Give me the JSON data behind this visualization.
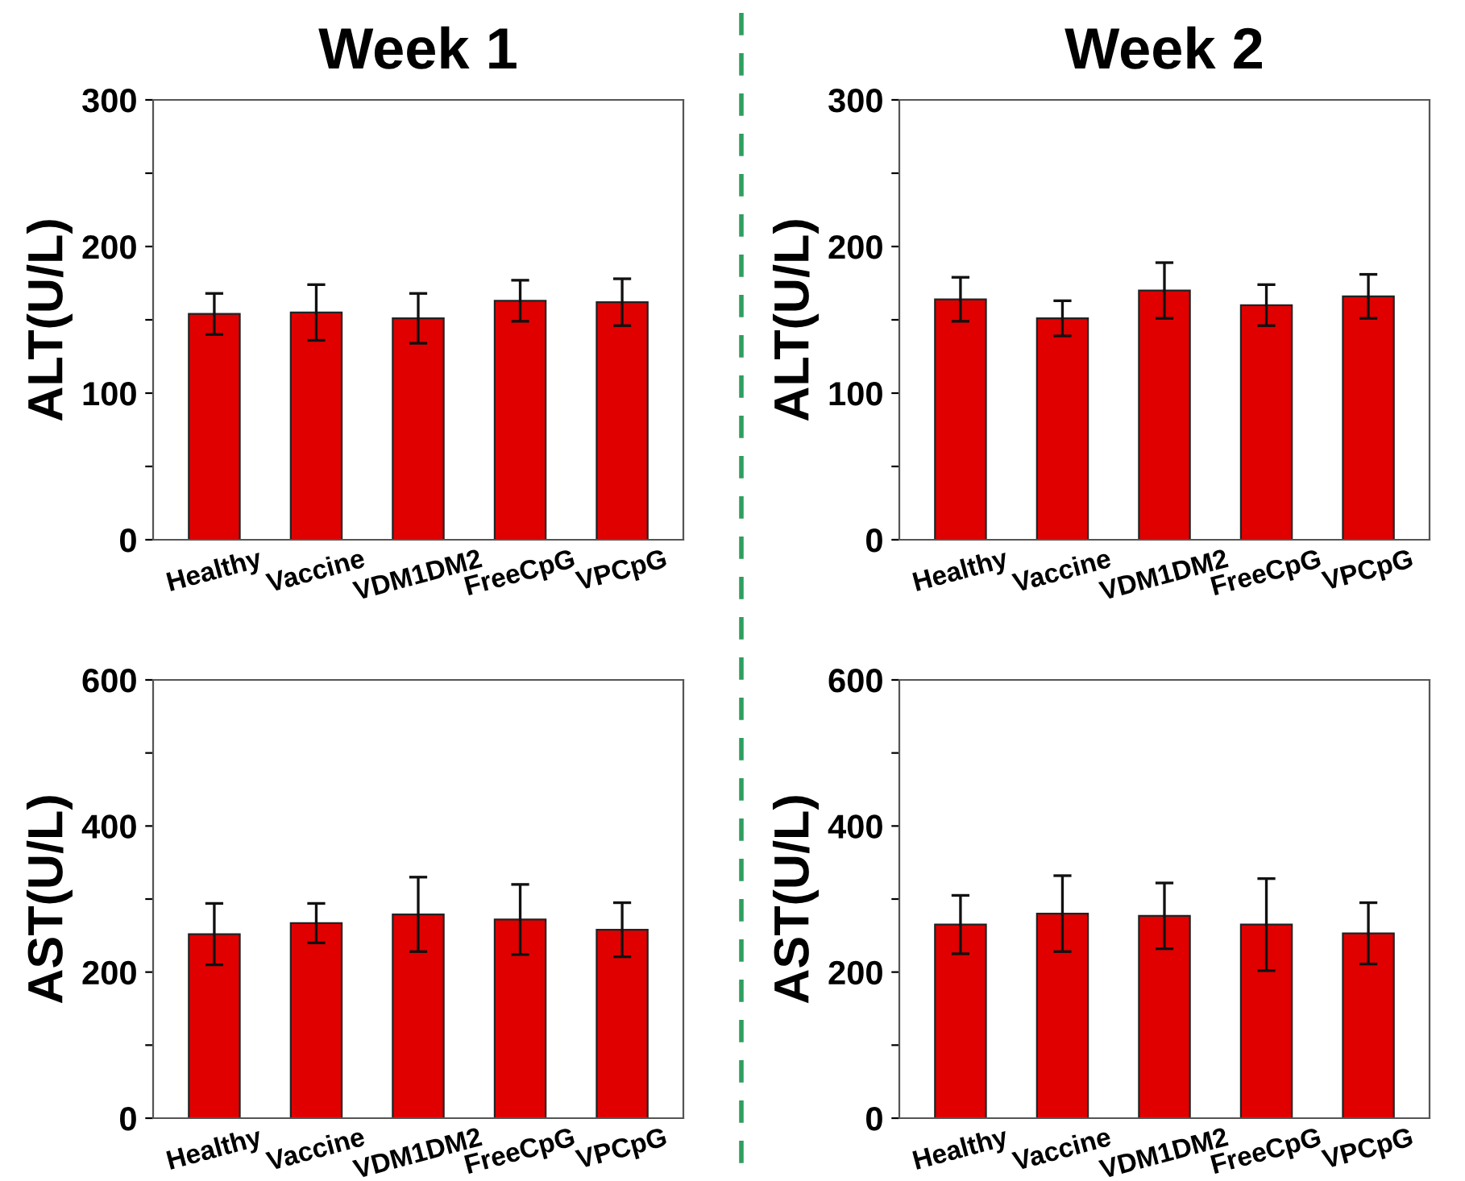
{
  "chart_data": [
    {
      "type": "bar",
      "title": "Week 1",
      "ylabel": "ALT(U/L)",
      "categories": [
        "Healthy",
        "Vaccine",
        "VDM1DM2",
        "FreeCpG",
        "VPCpG"
      ],
      "values": [
        154,
        155,
        151,
        163,
        162
      ],
      "errors": [
        14,
        19,
        17,
        14,
        16
      ],
      "color": "#e00000",
      "ylim": [
        0,
        300
      ],
      "yticks": [
        0,
        {
          "value": 50,
          "label": null
        },
        100,
        {
          "value": 150,
          "label": null
        },
        200,
        {
          "value": 250,
          "label": null
        },
        300
      ],
      "grid": false
    },
    {
      "type": "bar",
      "title": "Week 2",
      "ylabel": "ALT(U/L)",
      "categories": [
        "Healthy",
        "Vaccine",
        "VDM1DM2",
        "FreeCpG",
        "VPCpG"
      ],
      "values": [
        164,
        151,
        170,
        160,
        166
      ],
      "errors": [
        15,
        12,
        19,
        14,
        15
      ],
      "color": "#e00000",
      "ylim": [
        0,
        300
      ],
      "yticks": [
        0,
        {
          "value": 50,
          "label": null
        },
        100,
        {
          "value": 150,
          "label": null
        },
        200,
        {
          "value": 250,
          "label": null
        },
        300
      ],
      "grid": false
    },
    {
      "type": "bar",
      "ylabel": "AST(U/L)",
      "categories": [
        "Healthy",
        "Vaccine",
        "VDM1DM2",
        "FreeCpG",
        "VPCpG"
      ],
      "values": [
        252,
        267,
        279,
        272,
        258
      ],
      "errors": [
        42,
        27,
        51,
        48,
        37
      ],
      "color": "#e00000",
      "ylim": [
        0,
        600
      ],
      "yticks": [
        0,
        {
          "value": 100,
          "label": null
        },
        200,
        {
          "value": 300,
          "label": null
        },
        400,
        {
          "value": 500,
          "label": null
        },
        600
      ],
      "grid": false
    },
    {
      "type": "bar",
      "ylabel": "AST(U/L)",
      "categories": [
        "Healthy",
        "Vaccine",
        "VDM1DM2",
        "FreeCpG",
        "VPCpG"
      ],
      "values": [
        265,
        280,
        277,
        265,
        253
      ],
      "errors": [
        40,
        52,
        45,
        63,
        42
      ],
      "color": "#e00000",
      "ylim": [
        0,
        600
      ],
      "yticks": [
        0,
        {
          "value": 100,
          "label": null
        },
        200,
        {
          "value": 300,
          "label": null
        },
        400,
        {
          "value": 500,
          "label": null
        },
        600
      ],
      "grid": false
    }
  ]
}
